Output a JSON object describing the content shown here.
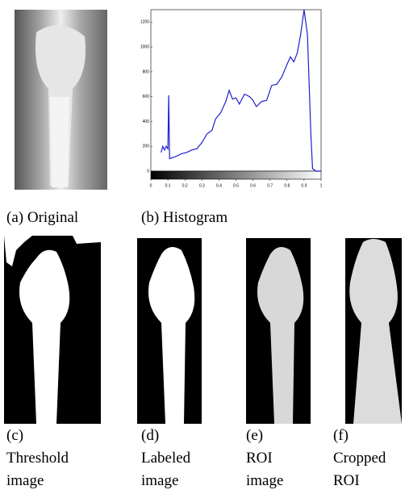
{
  "captions": [
    {
      "letter": "(a)",
      "text": "Original"
    },
    {
      "letter": "(b)",
      "text": "Histogram"
    },
    {
      "letter": "(c)",
      "text": "Threshold image"
    },
    {
      "letter": "(d)",
      "text": "Labeled image"
    },
    {
      "letter": "(e)",
      "text": "ROI image"
    },
    {
      "letter": "(f)",
      "text": "Cropped ROI"
    }
  ],
  "chart_data": {
    "type": "line",
    "color": "#1f1fd0",
    "x": [
      0.06,
      0.07,
      0.08,
      0.09,
      0.1,
      0.105,
      0.11,
      0.13,
      0.15,
      0.18,
      0.21,
      0.24,
      0.27,
      0.3,
      0.33,
      0.36,
      0.38,
      0.41,
      0.44,
      0.46,
      0.48,
      0.5,
      0.52,
      0.55,
      0.58,
      0.6,
      0.62,
      0.65,
      0.68,
      0.71,
      0.74,
      0.77,
      0.8,
      0.82,
      0.84,
      0.86,
      0.88,
      0.9,
      0.92,
      0.94,
      0.95,
      0.97,
      1.0
    ],
    "values": [
      150,
      200,
      170,
      200,
      180,
      610,
      100,
      110,
      120,
      140,
      150,
      170,
      180,
      230,
      300,
      330,
      420,
      470,
      560,
      650,
      580,
      590,
      540,
      620,
      600,
      570,
      520,
      560,
      570,
      690,
      700,
      760,
      860,
      920,
      880,
      950,
      1100,
      1300,
      1100,
      300,
      20,
      0,
      0
    ],
    "xlim": [
      0,
      1
    ],
    "xticks": [
      0,
      0.1,
      0.2,
      0.3,
      0.4,
      0.5,
      0.6,
      0.7,
      0.8,
      0.9,
      1
    ],
    "ylim": [
      0,
      1300
    ],
    "yticks": [
      0,
      200,
      400,
      600,
      800,
      1000,
      1200
    ]
  }
}
